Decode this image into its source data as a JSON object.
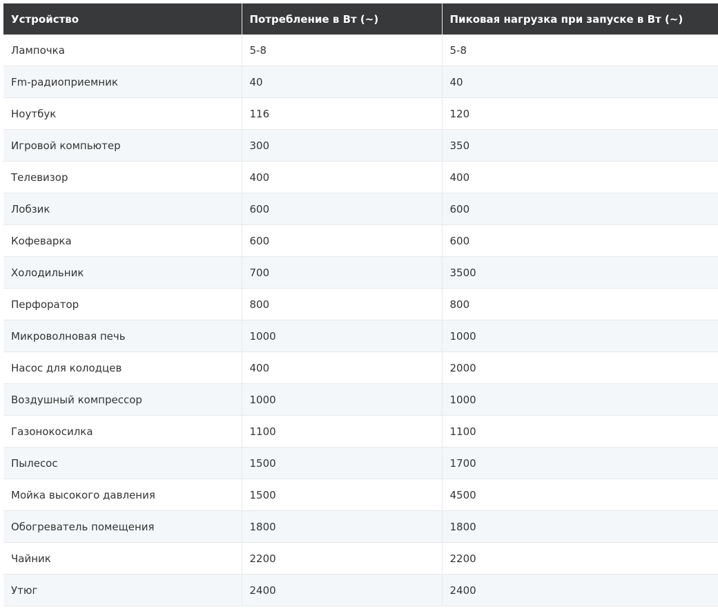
{
  "table": {
    "headers": [
      "Устройство",
      "Потребление в Вт (~)",
      "Пиковая нагрузка при запуске в Вт (~)"
    ],
    "rows": [
      [
        "Лампочка",
        "5-8",
        "5-8"
      ],
      [
        "Fm-радиоприемник",
        "40",
        "40"
      ],
      [
        "Ноутбук",
        "116",
        "120"
      ],
      [
        "Игровой компьютер",
        "300",
        "350"
      ],
      [
        "Телевизор",
        "400",
        "400"
      ],
      [
        "Лобзик",
        "600",
        "600"
      ],
      [
        "Кофеварка",
        "600",
        "600"
      ],
      [
        "Холодильник",
        "700",
        "3500"
      ],
      [
        "Перфоратор",
        "800",
        "800"
      ],
      [
        "Микроволновая печь",
        "1000",
        "1000"
      ],
      [
        "Насос для колодцев",
        "400",
        "2000"
      ],
      [
        "Воздушный компрессор",
        "1000",
        "1000"
      ],
      [
        "Газонокосилка",
        "1100",
        "1100"
      ],
      [
        "Пылесос",
        "1500",
        "1700"
      ],
      [
        "Мойка высокого давления",
        "1500",
        "4500"
      ],
      [
        "Обогреватель помещения",
        "1800",
        "1800"
      ],
      [
        "Чайник",
        "2200",
        "2200"
      ],
      [
        "Утюг",
        "2400",
        "2400"
      ]
    ]
  },
  "colors": {
    "header_bg": "#38393b",
    "stripe_bg": "#f4f7f9",
    "border": "#e6e8ea"
  }
}
